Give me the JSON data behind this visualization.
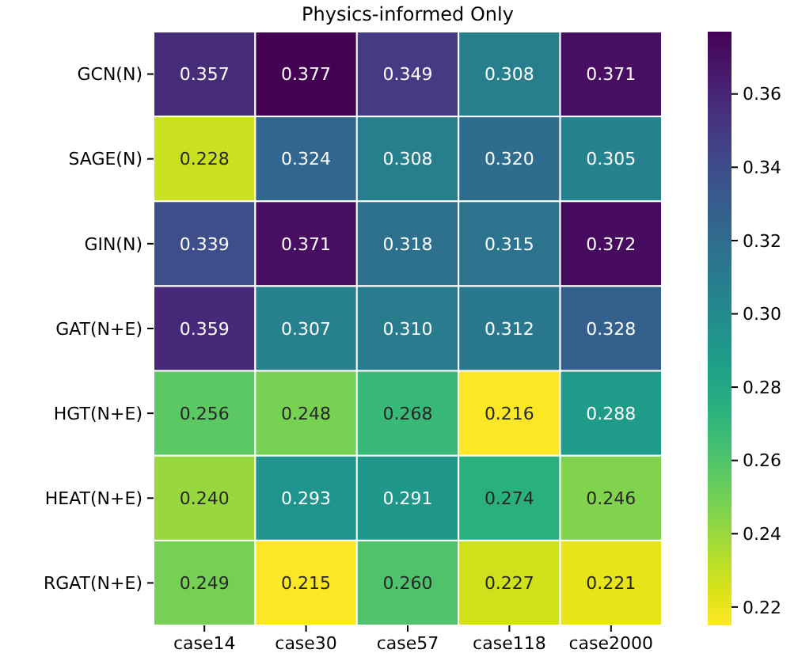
{
  "chart_data": {
    "type": "heatmap",
    "title": "Physics-informed Only",
    "categories": [
      "case14",
      "case30",
      "case57",
      "case118",
      "case2000"
    ],
    "y_categories": [
      "GCN(N)",
      "SAGE(N)",
      "GIN(N)",
      "GAT(N+E)",
      "HGT(N+E)",
      "HEAT(N+E)",
      "RGAT(N+E)"
    ],
    "cells": [
      [
        0.357,
        0.377,
        0.349,
        0.308,
        0.371
      ],
      [
        0.228,
        0.324,
        0.308,
        0.32,
        0.305
      ],
      [
        0.339,
        0.371,
        0.318,
        0.315,
        0.372
      ],
      [
        0.359,
        0.307,
        0.31,
        0.312,
        0.328
      ],
      [
        0.256,
        0.248,
        0.268,
        0.216,
        0.288
      ],
      [
        0.24,
        0.293,
        0.291,
        0.274,
        0.246
      ],
      [
        0.249,
        0.215,
        0.26,
        0.227,
        0.221
      ]
    ],
    "cell_labels": [
      [
        "0.357",
        "0.377",
        "0.349",
        "0.308",
        "0.371"
      ],
      [
        "0.228",
        "0.324",
        "0.308",
        "0.320",
        "0.305"
      ],
      [
        "0.339",
        "0.371",
        "0.318",
        "0.315",
        "0.372"
      ],
      [
        "0.359",
        "0.307",
        "0.310",
        "0.312",
        "0.328"
      ],
      [
        "0.256",
        "0.248",
        "0.268",
        "0.216",
        "0.288"
      ],
      [
        "0.240",
        "0.293",
        "0.291",
        "0.274",
        "0.246"
      ],
      [
        "0.249",
        "0.215",
        "0.260",
        "0.227",
        "0.221"
      ]
    ],
    "clim": [
      0.215,
      0.377
    ],
    "cticks": [
      0.22,
      0.24,
      0.26,
      0.28,
      {
        "value": 0.3,
        "label": "0.30"
      },
      0.32,
      0.34,
      0.36
    ]
  }
}
